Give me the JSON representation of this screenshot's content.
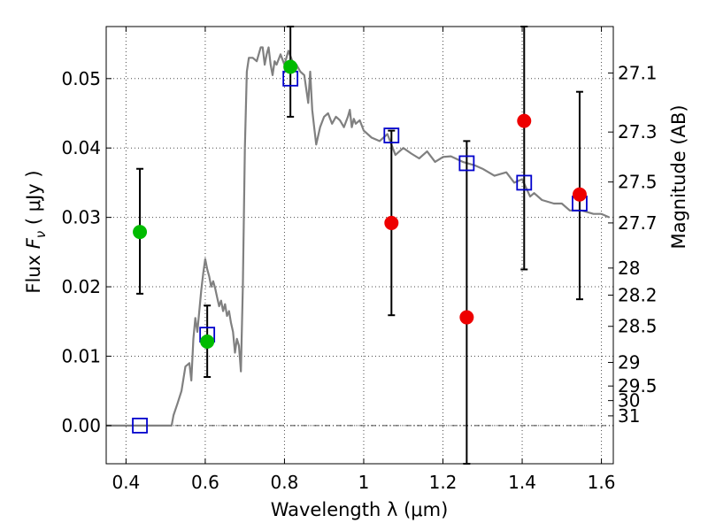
{
  "chart_data": {
    "type": "scatter",
    "xlabel": "Wavelength  λ (μm)",
    "ylabel": "Flux  F_ν  ( μJy )",
    "ylabel_parts": {
      "pre": "Flux  ",
      "sym": "F",
      "sub": "ν",
      "post": "  ( μJy )"
    },
    "y2label": "Magnitude (AB)",
    "xlim": [
      0.35,
      1.63
    ],
    "ylim": [
      -0.0055,
      0.0575
    ],
    "x_ticks": [
      0.4,
      0.6,
      0.8,
      1.0,
      1.2,
      1.4,
      1.6
    ],
    "x_tick_labels": [
      "0.4",
      "0.6",
      "0.8",
      "1",
      "1.2",
      "1.4",
      "1.6"
    ],
    "y_ticks": [
      0.0,
      0.01,
      0.02,
      0.03,
      0.04,
      0.05
    ],
    "y_tick_labels": [
      "0.00",
      "0.01",
      "0.02",
      "0.03",
      "0.04",
      "0.05"
    ],
    "y2_tick_labels": [
      "27.1",
      "27.3",
      "27.5",
      "27.7",
      "28",
      "28.2",
      "28.5",
      "29",
      "29.5",
      "30",
      "31"
    ],
    "y2_tick_flux": [
      0.0508,
      0.0423,
      0.0351,
      0.0292,
      0.0227,
      0.0188,
      0.0143,
      0.0091,
      0.0057,
      0.0036,
      0.0014
    ],
    "grid": true,
    "zero_line": true,
    "colors": {
      "model": "#808080",
      "green": "#00bb00",
      "red": "#ee0000",
      "box": "#0000cc",
      "error": "#000000"
    },
    "series": [
      {
        "style": "line",
        "color": "#808080",
        "x": [
          0.35,
          0.515,
          0.52,
          0.53,
          0.54,
          0.55,
          0.56,
          0.565,
          0.57,
          0.575,
          0.58,
          0.585,
          0.59,
          0.595,
          0.6,
          0.605,
          0.61,
          0.615,
          0.62,
          0.625,
          0.63,
          0.635,
          0.64,
          0.645,
          0.65,
          0.655,
          0.66,
          0.665,
          0.67,
          0.675,
          0.68,
          0.685,
          0.69,
          0.695,
          0.7,
          0.705,
          0.71,
          0.72,
          0.73,
          0.74,
          0.745,
          0.75,
          0.755,
          0.76,
          0.765,
          0.77,
          0.775,
          0.78,
          0.79,
          0.8,
          0.81,
          0.82,
          0.83,
          0.84,
          0.85,
          0.86,
          0.865,
          0.87,
          0.875,
          0.88,
          0.89,
          0.9,
          0.91,
          0.92,
          0.93,
          0.94,
          0.95,
          0.96,
          0.965,
          0.97,
          0.975,
          0.98,
          0.99,
          1.0,
          1.02,
          1.04,
          1.06,
          1.08,
          1.1,
          1.12,
          1.14,
          1.16,
          1.18,
          1.2,
          1.22,
          1.25,
          1.28,
          1.3,
          1.33,
          1.36,
          1.38,
          1.4,
          1.42,
          1.43,
          1.45,
          1.48,
          1.5,
          1.52,
          1.55,
          1.58,
          1.6,
          1.62
        ],
        "y": [
          0.0,
          0.0,
          0.0015,
          0.0032,
          0.005,
          0.0085,
          0.009,
          0.0065,
          0.0125,
          0.0155,
          0.0135,
          0.0165,
          0.0195,
          0.022,
          0.024,
          0.0225,
          0.0215,
          0.02,
          0.0208,
          0.0198,
          0.0185,
          0.0172,
          0.018,
          0.0165,
          0.0175,
          0.0158,
          0.0165,
          0.0148,
          0.0135,
          0.0105,
          0.0125,
          0.0115,
          0.0078,
          0.02,
          0.04,
          0.051,
          0.053,
          0.053,
          0.0525,
          0.0545,
          0.0545,
          0.052,
          0.0535,
          0.0545,
          0.052,
          0.0505,
          0.0525,
          0.052,
          0.0535,
          0.052,
          0.054,
          0.0525,
          0.052,
          0.051,
          0.0505,
          0.0465,
          0.051,
          0.0455,
          0.043,
          0.0405,
          0.043,
          0.0445,
          0.045,
          0.0435,
          0.0445,
          0.044,
          0.043,
          0.0445,
          0.0455,
          0.043,
          0.0442,
          0.0435,
          0.044,
          0.0425,
          0.0415,
          0.041,
          0.042,
          0.039,
          0.04,
          0.0392,
          0.0385,
          0.0395,
          0.038,
          0.0387,
          0.0388,
          0.038,
          0.0375,
          0.037,
          0.036,
          0.0365,
          0.035,
          0.0355,
          0.033,
          0.0335,
          0.0325,
          0.032,
          0.032,
          0.031,
          0.031,
          0.0305,
          0.0305,
          0.03
        ]
      },
      {
        "style": "open-square",
        "color": "#0000cc",
        "x": [
          0.435,
          0.605,
          0.815,
          1.07,
          1.26,
          1.405,
          1.545
        ],
        "y": [
          0.0,
          0.0131,
          0.05,
          0.0418,
          0.0378,
          0.035,
          0.032
        ]
      },
      {
        "style": "filled-circle",
        "color": "#00bb00",
        "x": [
          0.435,
          0.605,
          0.815
        ],
        "y": [
          0.0279,
          0.0121,
          0.0517
        ],
        "err_low": [
          0.019,
          0.007,
          0.0445
        ],
        "err_high": [
          0.037,
          0.0173,
          0.0575
        ]
      },
      {
        "style": "filled-circle",
        "color": "#ee0000",
        "x": [
          1.07,
          1.26,
          1.405,
          1.545
        ],
        "y": [
          0.0292,
          0.0156,
          0.0439,
          0.0333
        ],
        "err_low": [
          0.0159,
          -0.0055,
          0.0225,
          0.0182
        ],
        "err_high": [
          0.0425,
          0.041,
          0.0575,
          0.0481
        ]
      }
    ]
  }
}
